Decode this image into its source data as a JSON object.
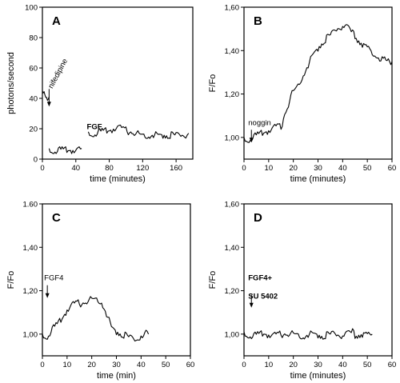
{
  "chart_data": [
    {
      "id": "A",
      "type": "line",
      "panel_label": "A",
      "xlabel": "time (minutes)",
      "ylabel": "photons/second",
      "xlim": [
        0,
        180
      ],
      "ylim": [
        0,
        100
      ],
      "xticks": [
        0,
        40,
        80,
        120,
        160
      ],
      "yticks": [
        0,
        20,
        40,
        60,
        80,
        100
      ],
      "ytick_labels": [
        "0",
        "20",
        "40",
        "60",
        "80",
        "100"
      ],
      "annotations": [
        {
          "text": "nifedipine",
          "x": 8,
          "y": 43,
          "bold": false,
          "rotated": true
        },
        {
          "text": "FGF",
          "x": 57,
          "y": 25,
          "bold": true,
          "rotated": false
        }
      ],
      "series": [
        {
          "segments": [
            {
              "x": [
                0,
                2,
                4,
                6,
                8
              ],
              "y": [
                45,
                47,
                44,
                42,
                41
              ]
            },
            {
              "x": [
                8,
                15,
                25,
                35,
                47
              ],
              "y": [
                7,
                7,
                7,
                7,
                7
              ]
            },
            {
              "x": [
                55,
                60,
                70,
                80,
                85,
                90,
                95,
                100,
                110,
                120,
                130,
                140,
                150,
                160,
                170,
                175
              ],
              "y": [
                18,
                18,
                19,
                20,
                21,
                22,
                21,
                20,
                18.5,
                17,
                17,
                17,
                17,
                17,
                17,
                17
              ]
            }
          ]
        }
      ]
    },
    {
      "id": "B",
      "type": "line",
      "panel_label": "B",
      "xlabel": "time (minutes)",
      "ylabel": "F/Fo",
      "xlim": [
        0,
        60
      ],
      "ylim": [
        0.9,
        1.6
      ],
      "xticks": [
        0,
        10,
        20,
        30,
        40,
        50,
        60
      ],
      "yticks": [
        1.0,
        1.2,
        1.4,
        1.6
      ],
      "ytick_labels": [
        "1,00",
        "1,20",
        "1,40",
        "1,60"
      ],
      "annotations": [
        {
          "text": "noggin",
          "x": 3,
          "y": 1.05,
          "bold": false,
          "rotated": false
        }
      ],
      "series": [
        {
          "segments": [
            {
              "x": [
                0,
                2,
                4,
                6,
                8,
                10,
                12,
                14,
                15,
                16,
                17,
                18,
                19,
                20,
                22,
                24,
                26,
                28,
                30,
                32,
                34,
                36,
                38,
                40,
                42,
                44,
                46,
                48,
                50,
                52,
                54,
                56,
                58,
                60
              ],
              "y": [
                1.0,
                1.0,
                1.01,
                1.02,
                1.03,
                1.04,
                1.05,
                1.06,
                1.05,
                1.1,
                1.13,
                1.16,
                1.2,
                1.22,
                1.25,
                1.3,
                1.34,
                1.39,
                1.42,
                1.45,
                1.47,
                1.49,
                1.51,
                1.52,
                1.51,
                1.49,
                1.46,
                1.44,
                1.42,
                1.4,
                1.38,
                1.37,
                1.36,
                1.35
              ]
            }
          ]
        }
      ]
    },
    {
      "id": "C",
      "type": "line",
      "panel_label": "C",
      "xlabel": "time (min)",
      "ylabel": "F/Fo",
      "xlim": [
        0,
        60
      ],
      "ylim": [
        0.9,
        1.6
      ],
      "xticks": [
        0,
        10,
        20,
        30,
        40,
        50,
        60
      ],
      "yticks": [
        1.0,
        1.2,
        1.4,
        1.6
      ],
      "ytick_labels": [
        "1,00",
        "1,20",
        "1,40",
        "1.60"
      ],
      "annotations": [
        {
          "text": "FGF4",
          "x": 2,
          "y": 1.24,
          "bold": false,
          "rotated": false
        }
      ],
      "series": [
        {
          "segments": [
            {
              "x": [
                0,
                2,
                4,
                6,
                8,
                10,
                12,
                14,
                16,
                18,
                20,
                22,
                24,
                26,
                28,
                30,
                32,
                34,
                36,
                38,
                40,
                41,
                42,
                43
              ],
              "y": [
                1.0,
                1.0,
                1.03,
                1.05,
                1.08,
                1.12,
                1.14,
                1.15,
                1.15,
                1.16,
                1.17,
                1.17,
                1.16,
                1.1,
                1.04,
                1.02,
                1.01,
                1.0,
                0.99,
                0.98,
                1.0,
                0.99,
                1.01,
                1.0
              ]
            }
          ]
        }
      ]
    },
    {
      "id": "D",
      "type": "line",
      "panel_label": "D",
      "xlabel": "time (minutes)",
      "ylabel": "F/Fo",
      "xlim": [
        0,
        60
      ],
      "ylim": [
        0.9,
        1.6
      ],
      "xticks": [
        0,
        10,
        20,
        30,
        40,
        50,
        60
      ],
      "yticks": [
        1.0,
        1.2,
        1.4,
        1.6
      ],
      "ytick_labels": [
        "1,00",
        "1,20",
        "1,40",
        "1,60"
      ],
      "annotations": [
        {
          "text": "FGF4+",
          "x": 3,
          "y": 1.24,
          "bold": true,
          "rotated": false
        },
        {
          "text": "SU 5402",
          "x": 3,
          "y": 1.2,
          "bold": true,
          "rotated": false
        }
      ],
      "series": [
        {
          "segments": [
            {
              "x": [
                0,
                4,
                8,
                12,
                16,
                20,
                24,
                28,
                32,
                36,
                40,
                43,
                44,
                45,
                48,
                52
              ],
              "y": [
                1.01,
                1.0,
                1.01,
                1.0,
                1.01,
                1.01,
                1.0,
                1.01,
                1.0,
                1.01,
                1.0,
                1.01,
                1.02,
                1.0,
                1.01,
                1.0
              ]
            }
          ]
        }
      ]
    }
  ]
}
